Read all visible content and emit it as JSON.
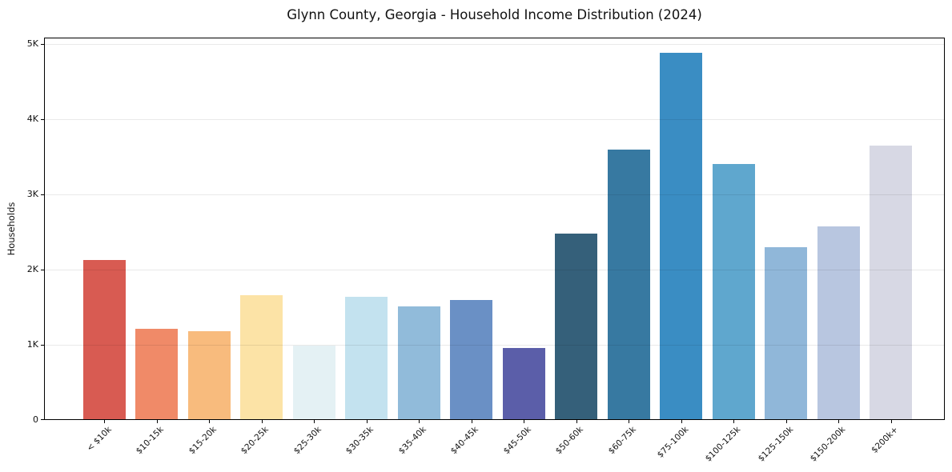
{
  "chart_data": {
    "type": "bar",
    "title": "Glynn County, Georgia - Household Income Distribution (2024)",
    "xlabel": "",
    "ylabel": "Households",
    "ylim": [
      0,
      5085
    ],
    "grid": "horizontal",
    "legend": "none",
    "ytick_values": [
      0,
      1000,
      2000,
      3000,
      4000,
      5000
    ],
    "ytick_labels": [
      "0",
      "1K",
      "2K",
      "3K",
      "4K",
      "5K"
    ],
    "categories": [
      "< $10k",
      "$10-15k",
      "$15-20k",
      "$20-25k",
      "$25-30k",
      "$30-35k",
      "$35-40k",
      "$40-45k",
      "$45-50k",
      "$50-60k",
      "$60-75k",
      "$75-100k",
      "$100-125k",
      "$125-150k",
      "$150-200k",
      "$200k+"
    ],
    "values": [
      2120,
      1200,
      1170,
      1650,
      980,
      1630,
      1500,
      1580,
      950,
      2470,
      3590,
      4870,
      3390,
      2290,
      2560,
      3640
    ],
    "bar_colors": [
      "#d85b52",
      "#f08a68",
      "#f8bb7d",
      "#fce3a6",
      "#e4f1f4",
      "#c3e2ef",
      "#91bbda",
      "#6a90c5",
      "#5b5ea9",
      "#35607a",
      "#3779a1",
      "#3a8dc3",
      "#5fa7ce",
      "#90b7d9",
      "#b8c6e0",
      "#d7d8e4"
    ],
    "spine_color": "#000000"
  }
}
